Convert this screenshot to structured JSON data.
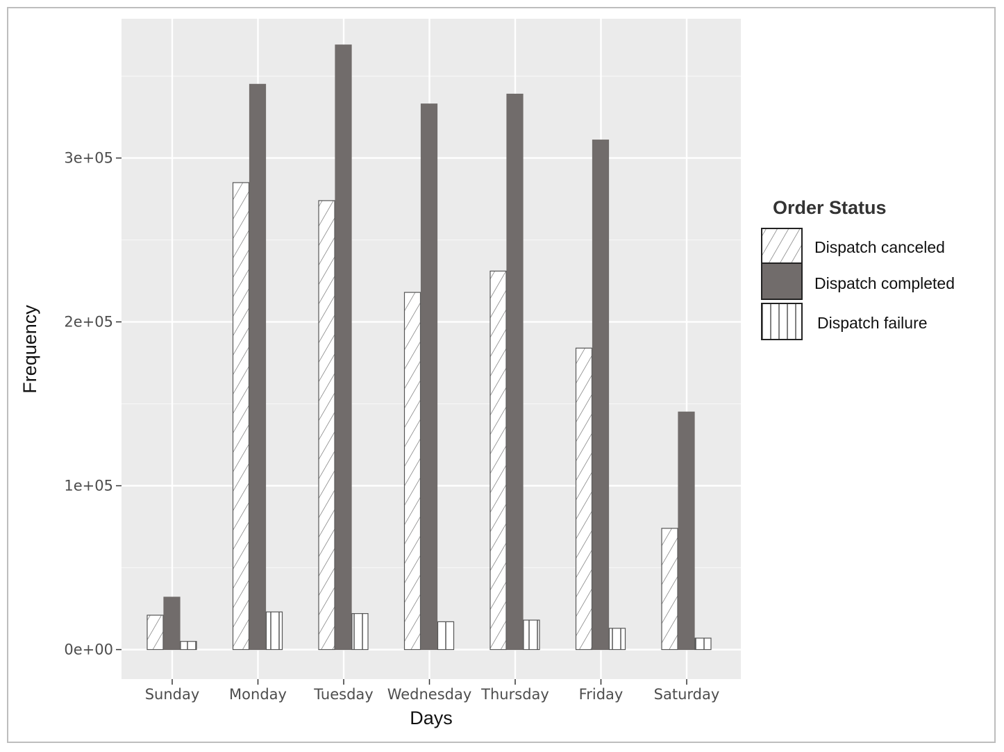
{
  "chart_data": {
    "type": "bar",
    "title": "",
    "xlabel": "Days",
    "ylabel": "Frequency",
    "ylim": [
      -18000,
      385000
    ],
    "yticks": [
      0,
      100000,
      200000,
      300000
    ],
    "ytick_labels": [
      "0e+00",
      "1e+05",
      "2e+05",
      "3e+05"
    ],
    "categories": [
      "Sunday",
      "Monday",
      "Tuesday",
      "Wednesday",
      "Thursday",
      "Friday",
      "Saturday"
    ],
    "series": [
      {
        "name": "Dispatch canceled",
        "pattern": "diagonal-hatch",
        "values": [
          21000,
          285000,
          274000,
          218000,
          231000,
          184000,
          74000
        ]
      },
      {
        "name": "Dispatch completed",
        "pattern": "solid",
        "color": "#716c6b",
        "values": [
          32000,
          345000,
          369000,
          333000,
          339000,
          311000,
          145000
        ]
      },
      {
        "name": "Dispatch failure",
        "pattern": "vertical-hatch",
        "values": [
          5000,
          23000,
          22000,
          17000,
          18000,
          13000,
          7000
        ]
      }
    ],
    "legend": {
      "title": "Order Status",
      "position": "right"
    },
    "grid": true,
    "panel_color": "#ebebeb"
  }
}
